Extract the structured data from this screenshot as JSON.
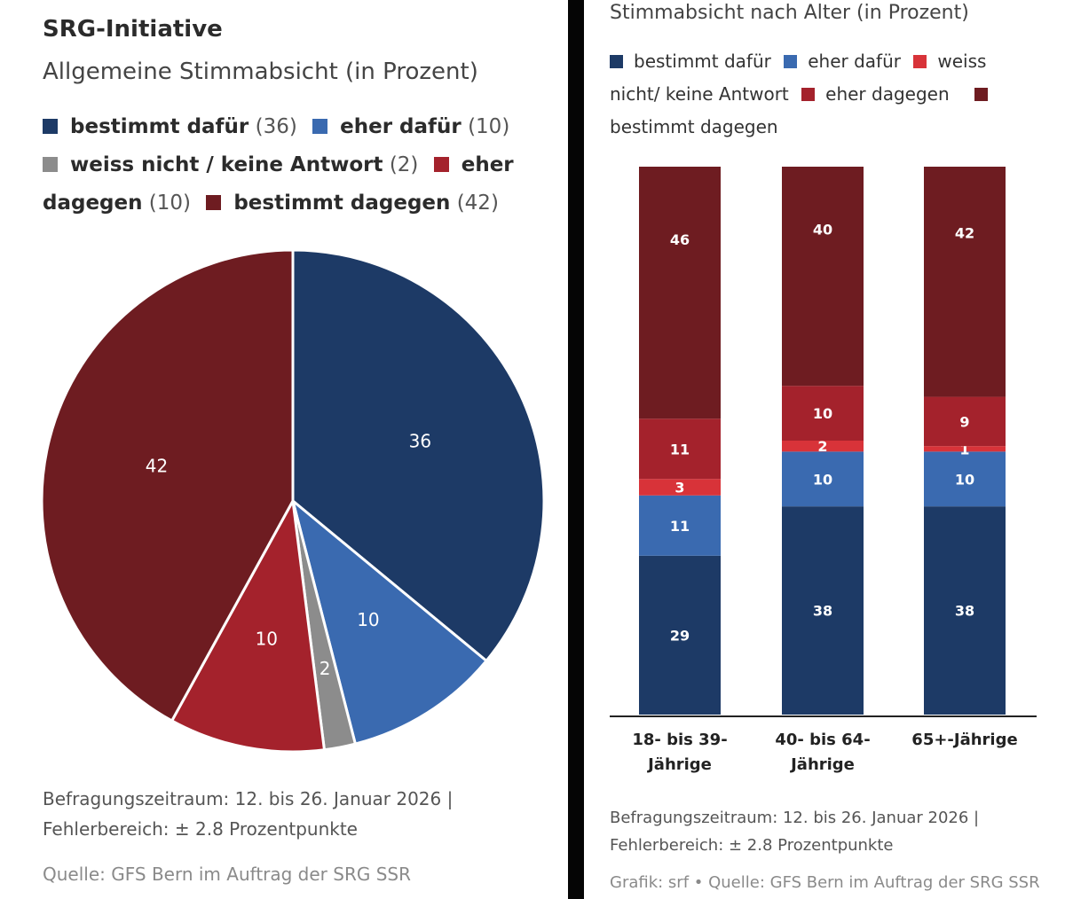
{
  "colors": {
    "bestimmt_dafuer": "#1d3a66",
    "eher_dafuer": "#3a6ab0",
    "weiss_nicht_pie": "#8c8c8c",
    "weiss_nicht_bar": "#d83339",
    "eher_dagegen": "#a4222c",
    "bestimmt_dagegen": "#6e1c21"
  },
  "left": {
    "title": "SRG-Initiative",
    "subtitle": "Allgemeine Stimmabsicht (in Prozent)",
    "legend": [
      {
        "label": "bestimmt dafür",
        "value": "(36)",
        "color": "#1d3a66"
      },
      {
        "label": "eher dafür",
        "value": "(10)",
        "color": "#3a6ab0"
      },
      {
        "label": "weiss nicht / keine Antwort",
        "value": "(2)",
        "color": "#8c8c8c"
      },
      {
        "label": "eher dagegen",
        "value": "(10)",
        "color": "#a4222c"
      },
      {
        "label": "bestimmt dagegen",
        "value": "(42)",
        "color": "#6e1c21"
      }
    ],
    "note_line1": "Befragungszeitraum: 12. bis 26. Januar 2026 |",
    "note_line2": "Fehlerbereich: ± 2.8 Prozentpunkte",
    "source": "Quelle: GFS Bern im Auftrag der SRG SSR"
  },
  "right": {
    "subtitle": "Stimmabsicht nach Alter (in Prozent)",
    "legend": [
      {
        "label": "bestimmt dafür",
        "color": "#1d3a66"
      },
      {
        "label": "eher dafür",
        "color": "#3a6ab0"
      },
      {
        "label": "weiss nicht/ keine Antwort",
        "color": "#d83339"
      },
      {
        "label": "eher dagegen",
        "color": "#a4222c"
      },
      {
        "label": "bestimmt dagegen",
        "color": "#6e1c21"
      }
    ],
    "note_line1": "Befragungszeitraum: 12. bis 26. Januar 2026 |",
    "note_line2": "Fehlerbereich: ± 2.8 Prozentpunkte",
    "source": "Grafik: srf • Quelle: GFS Bern im Auftrag der SRG SSR"
  },
  "chart_data": [
    {
      "type": "pie",
      "title": "SRG-Initiative",
      "subtitle": "Allgemeine Stimmabsicht (in Prozent)",
      "slices": [
        {
          "label": "bestimmt dafür",
          "value": 36,
          "color": "#1d3a66"
        },
        {
          "label": "eher dafür",
          "value": 10,
          "color": "#3a6ab0"
        },
        {
          "label": "weiss nicht / keine Antwort",
          "value": 2,
          "color": "#8c8c8c"
        },
        {
          "label": "eher dagegen",
          "value": 10,
          "color": "#a4222c"
        },
        {
          "label": "bestimmt dagegen",
          "value": 42,
          "color": "#6e1c21"
        }
      ]
    },
    {
      "type": "bar",
      "stacked": true,
      "title": "Stimmabsicht nach Alter (in Prozent)",
      "categories": [
        "18- bis 39-Jährige",
        "40- bis 64-Jährige",
        "65+-Jährige"
      ],
      "category_lines": [
        [
          "18- bis 39-",
          "Jährige"
        ],
        [
          "40- bis 64-",
          "Jährige"
        ],
        [
          "65+-Jährige"
        ]
      ],
      "series": [
        {
          "name": "bestimmt dafür",
          "values": [
            29,
            38,
            38
          ],
          "color": "#1d3a66"
        },
        {
          "name": "eher dafür",
          "values": [
            11,
            10,
            10
          ],
          "color": "#3a6ab0"
        },
        {
          "name": "weiss nicht/ keine Antwort",
          "values": [
            3,
            2,
            1
          ],
          "color": "#d83339"
        },
        {
          "name": "eher dagegen",
          "values": [
            11,
            10,
            9
          ],
          "color": "#a4222c"
        },
        {
          "name": "bestimmt dagegen",
          "values": [
            46,
            40,
            42
          ],
          "color": "#6e1c21"
        }
      ],
      "ylim": [
        0,
        100
      ]
    }
  ]
}
